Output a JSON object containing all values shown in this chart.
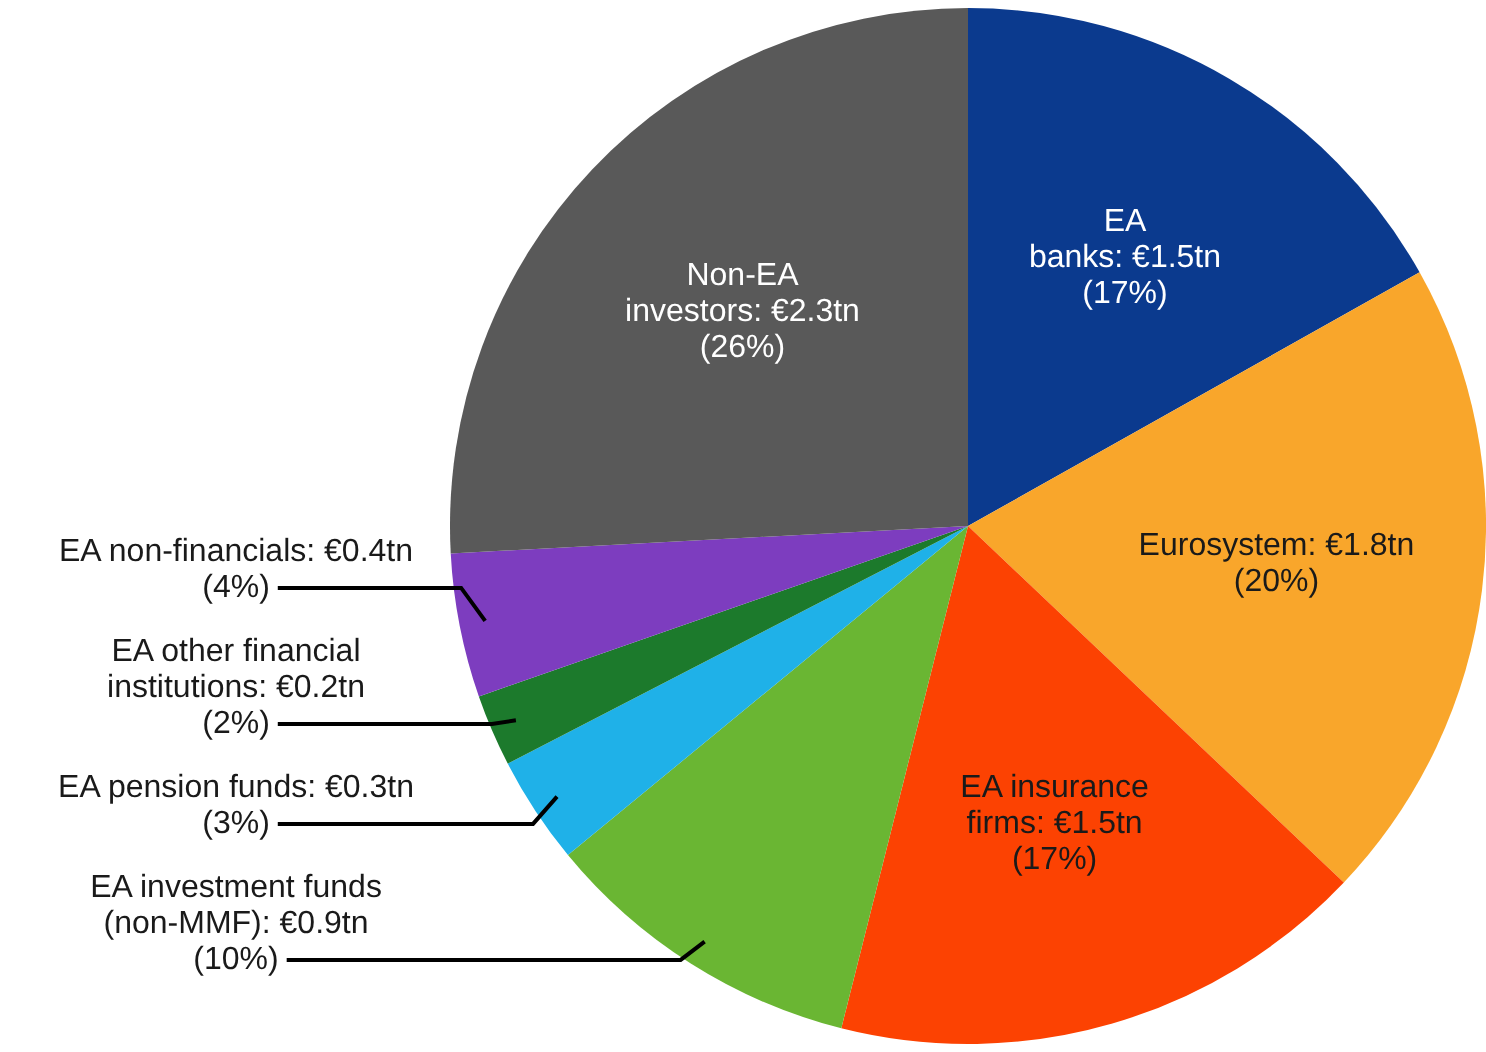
{
  "chart_data": {
    "type": "pie",
    "categories": [
      "EA banks",
      "Eurosystem",
      "EA insurance firms",
      "EA investment funds (non-MMF)",
      "EA pension funds",
      "EA other financial institutions",
      "EA non-financials",
      "Non-EA investors"
    ],
    "values": [
      1.5,
      1.8,
      1.5,
      0.9,
      0.3,
      0.2,
      0.4,
      2.3
    ],
    "value_labels": [
      "€1.5tn (17%)",
      "€1.8tn (20%)",
      "€1.5tn (17%)",
      "€0.9tn (10%)",
      "€0.3tn (3%)",
      "€0.2tn (2%)",
      "€0.4tn (4%)",
      "€2.3tn (26%)"
    ],
    "colors": [
      "#0b3a8e",
      "#f9a62b",
      "#fc4202",
      "#6ab633",
      "#1fb1e8",
      "#1c7a2c",
      "#7d3dbf",
      "#595959"
    ],
    "legend": false
  }
}
